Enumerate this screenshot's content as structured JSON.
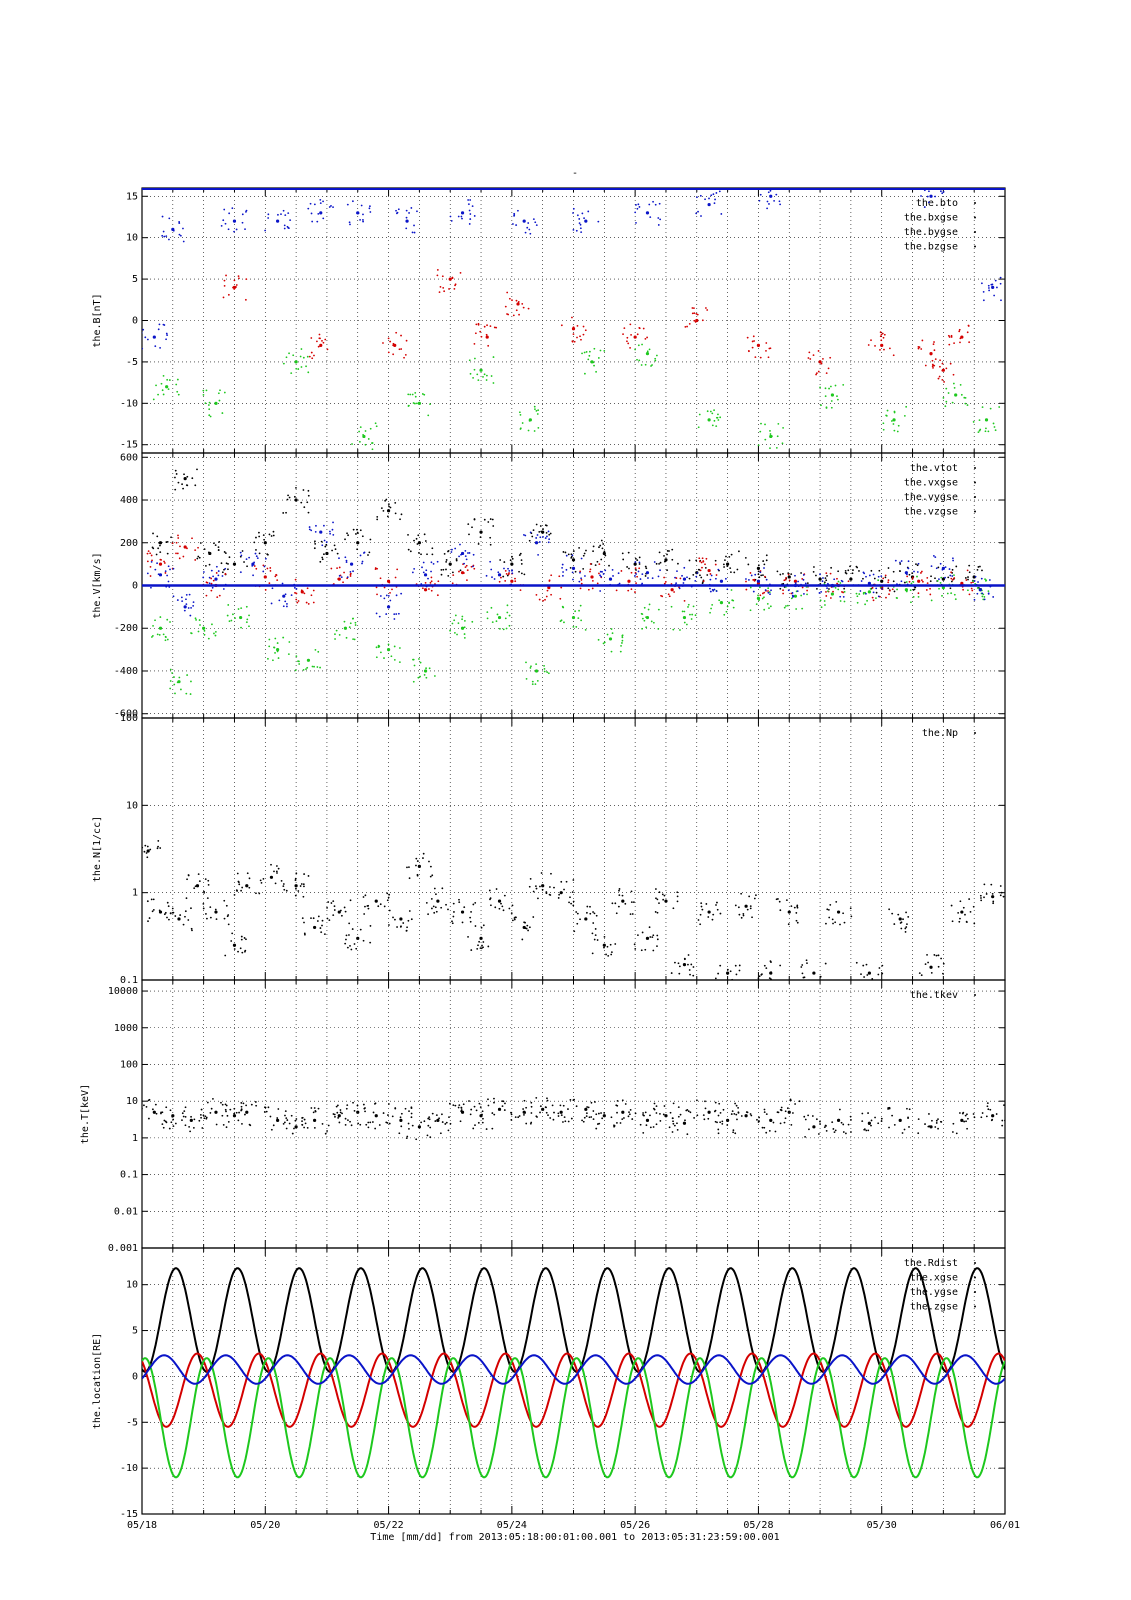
{
  "title": "-",
  "xaxis": {
    "ticks": [
      "05/18",
      "05/20",
      "05/22",
      "05/24",
      "05/26",
      "05/28",
      "05/30",
      "06/01"
    ],
    "minor_ticks_per_major": 4,
    "label": "Time [mm/dd]  from 2013:05:18:00:01:00.001  to  2013:05:31:23:59:00.001",
    "range_days": [
      0,
      14
    ]
  },
  "colors": {
    "black": "#000000",
    "red": "#d40000",
    "green": "#1ec81e",
    "blue": "#0a14c8"
  },
  "chart_data": [
    {
      "type": "scatter",
      "ylabel": "the.B[nT]",
      "scale": "linear",
      "ylim": [
        -16,
        16
      ],
      "yticks": [
        15,
        10,
        5,
        0,
        -5,
        -10,
        -15
      ],
      "ytick_labels": [
        "15",
        "10",
        "5",
        "0",
        "-5",
        "-10",
        "-15"
      ],
      "legend": [
        "the.bto",
        "the.bxgse",
        "the.bygse",
        "the.bzgse"
      ],
      "legend_position": "top-right",
      "grid": true,
      "series": [
        {
          "name": "the.bto",
          "color": "black",
          "x": [],
          "y": []
        },
        {
          "name": "the.bxgse",
          "color": "red",
          "x": [
            1.5,
            2.9,
            4.1,
            5.0,
            5.6,
            6.1,
            7.0,
            8.0,
            9.0,
            10.0,
            11.0,
            12.0,
            12.8,
            13.0,
            13.3
          ],
          "y": [
            4,
            -3,
            -3,
            5,
            -2,
            2,
            -1,
            -2,
            0,
            -3,
            -5,
            -3,
            -4,
            -6,
            -2
          ]
        },
        {
          "name": "the.bygse",
          "color": "green",
          "x": [
            0.4,
            1.2,
            2.5,
            3.6,
            4.5,
            5.5,
            6.3,
            7.3,
            8.2,
            9.2,
            10.2,
            11.2,
            12.2,
            13.2,
            13.7
          ],
          "y": [
            -8,
            -10,
            -5,
            -14,
            -10,
            -6,
            -12,
            -5,
            -4,
            -12,
            -14,
            -9,
            -12,
            -9,
            -12
          ]
        },
        {
          "name": "the.bzgse",
          "color": "blue",
          "x": [
            0.2,
            0.5,
            1.5,
            2.2,
            2.9,
            3.5,
            4.3,
            5.2,
            6.2,
            7.2,
            8.2,
            9.2,
            10.2,
            12.8,
            13.8
          ],
          "y": [
            -2,
            11,
            12,
            12,
            13,
            13,
            12,
            13,
            12,
            12,
            13,
            14,
            15,
            15,
            4
          ]
        }
      ]
    },
    {
      "type": "scatter",
      "ylabel": "the.V[km/s]",
      "scale": "linear",
      "ylim": [
        -620,
        620
      ],
      "yticks": [
        600,
        400,
        200,
        0,
        -200,
        -400,
        -600
      ],
      "ytick_labels": [
        "600",
        "400",
        "200",
        "0",
        "-200",
        "-400",
        "-600"
      ],
      "legend": [
        "the.vtot",
        "the.vxgse",
        "the.vygse",
        "the.vzgse"
      ],
      "legend_position": "top-right",
      "grid": true,
      "series": [
        {
          "name": "the.vtot",
          "color": "black",
          "x": [
            0.3,
            0.7,
            1.1,
            1.5,
            2.0,
            2.5,
            3.0,
            3.5,
            4.0,
            4.5,
            5.0,
            5.5,
            6.0,
            6.5,
            7.0,
            7.5,
            8.0,
            8.5,
            9.0,
            9.5,
            10.0,
            10.5,
            11.0,
            11.5,
            12.0,
            12.5,
            13.0,
            13.5
          ],
          "y": [
            200,
            500,
            150,
            100,
            200,
            400,
            150,
            200,
            350,
            200,
            100,
            250,
            100,
            250,
            120,
            150,
            100,
            120,
            60,
            100,
            80,
            40,
            30,
            30,
            20,
            40,
            30,
            40
          ]
        },
        {
          "name": "the.vxgse",
          "color": "red",
          "x": [
            0.3,
            0.7,
            1.2,
            2.0,
            2.6,
            3.2,
            4.0,
            4.6,
            5.2,
            6.0,
            6.6,
            7.3,
            7.9,
            8.6,
            9.2,
            10.0,
            10.6,
            11.3,
            12.0,
            12.6,
            13.3
          ],
          "y": [
            100,
            180,
            0,
            40,
            -30,
            30,
            20,
            -20,
            60,
            20,
            -10,
            40,
            20,
            -20,
            70,
            10,
            20,
            0,
            -10,
            20,
            10
          ]
        },
        {
          "name": "the.vygse",
          "color": "green",
          "x": [
            0.3,
            0.6,
            1.0,
            1.6,
            2.2,
            2.7,
            3.3,
            4.0,
            4.6,
            5.2,
            5.8,
            6.4,
            7.0,
            7.6,
            8.2,
            8.8,
            9.4,
            10.0,
            10.6,
            11.2,
            11.8,
            12.4,
            13.0,
            13.6
          ],
          "y": [
            -200,
            -450,
            -200,
            -150,
            -300,
            -350,
            -200,
            -300,
            -400,
            -200,
            -150,
            -400,
            -150,
            -250,
            -150,
            -150,
            -80,
            -60,
            -50,
            -40,
            -30,
            -20,
            -10,
            -20
          ]
        },
        {
          "name": "the.vzgse",
          "color": "blue",
          "x": [
            0.3,
            0.7,
            1.2,
            1.8,
            2.3,
            2.9,
            3.4,
            4.0,
            4.6,
            5.2,
            5.8,
            6.4,
            7.0,
            7.6,
            8.2,
            8.8,
            9.4,
            10.0,
            10.6,
            11.2,
            11.8,
            12.4,
            13.0,
            13.6
          ],
          "y": [
            50,
            -100,
            30,
            100,
            -50,
            250,
            100,
            -100,
            50,
            150,
            50,
            200,
            80,
            30,
            60,
            30,
            20,
            20,
            0,
            0,
            10,
            60,
            80,
            -20
          ]
        }
      ]
    },
    {
      "type": "scatter",
      "ylabel": "the.N[1/cc]",
      "scale": "log",
      "ylim": [
        0.1,
        100
      ],
      "yticks": [
        100,
        10,
        1,
        0.1
      ],
      "ytick_labels": [
        "100",
        "10",
        "1",
        "0.1"
      ],
      "legend": [
        "the.Np"
      ],
      "legend_position": "top-right",
      "grid": true,
      "series": [
        {
          "name": "the.Np",
          "color": "black",
          "x": [
            0.1,
            0.3,
            0.6,
            0.9,
            1.2,
            1.5,
            1.7,
            2.1,
            2.5,
            2.8,
            3.2,
            3.5,
            3.8,
            4.2,
            4.5,
            4.8,
            5.2,
            5.5,
            5.8,
            6.2,
            6.5,
            6.8,
            7.2,
            7.5,
            7.8,
            8.2,
            8.5,
            8.8,
            9.2,
            9.5,
            9.8,
            10.2,
            10.5,
            10.9,
            11.3,
            11.8,
            12.3,
            12.8,
            13.3,
            13.8
          ],
          "y": [
            3.0,
            0.6,
            0.5,
            1.2,
            0.6,
            0.25,
            1.2,
            1.5,
            1.2,
            0.4,
            0.6,
            0.3,
            0.8,
            0.5,
            2.0,
            0.8,
            0.6,
            0.3,
            0.8,
            0.4,
            1.2,
            1.0,
            0.5,
            0.25,
            0.8,
            0.3,
            0.8,
            0.15,
            0.6,
            0.12,
            0.7,
            0.12,
            0.6,
            0.12,
            0.6,
            0.12,
            0.5,
            0.14,
            0.6,
            0.9
          ]
        }
      ]
    },
    {
      "type": "scatter",
      "ylabel": "the.T[keV]",
      "scale": "log",
      "ylim": [
        0.001,
        20000
      ],
      "yticks": [
        10000,
        1000,
        100,
        10,
        1,
        0.1,
        0.01,
        0.001
      ],
      "ytick_labels": [
        "10000",
        "1000",
        "100",
        "10",
        "1",
        "0.1",
        "0.01",
        "0.001"
      ],
      "legend": [
        "the.tkev"
      ],
      "legend_position": "top-right",
      "grid": true,
      "series": [
        {
          "name": "the.tkev",
          "color": "black",
          "x": [
            0.2,
            0.5,
            0.8,
            1.2,
            1.5,
            1.7,
            2.2,
            2.5,
            2.8,
            3.2,
            3.5,
            3.8,
            4.2,
            4.5,
            4.8,
            5.2,
            5.5,
            5.8,
            6.2,
            6.5,
            6.8,
            7.2,
            7.5,
            7.8,
            8.2,
            8.5,
            8.8,
            9.2,
            9.5,
            9.8,
            10.2,
            10.5,
            10.9,
            11.3,
            11.8,
            12.3,
            12.8,
            13.3,
            13.8
          ],
          "y": [
            5,
            4,
            3,
            5,
            4,
            5,
            3,
            2,
            3,
            4,
            5,
            4,
            3,
            2,
            3,
            5,
            4,
            6,
            5,
            6,
            5,
            6,
            4,
            5,
            3,
            4,
            2.5,
            5,
            3,
            4,
            3,
            5,
            2,
            3,
            2.5,
            3,
            2,
            3,
            4
          ]
        }
      ]
    },
    {
      "type": "line",
      "ylabel": "the.location[RE]",
      "scale": "linear",
      "ylim": [
        -15,
        14
      ],
      "yticks": [
        10,
        5,
        0,
        -5,
        -10,
        -15
      ],
      "ytick_labels": [
        "10",
        "5",
        "0",
        "-5",
        "-10",
        "-15"
      ],
      "legend": [
        "the.Rdist",
        "the.xgse",
        "the.ygse",
        "the.zgse"
      ],
      "legend_position": "top-right",
      "grid": true,
      "orbit_period_days": 1.0,
      "orbit_phase_days": 0.55,
      "series": [
        {
          "name": "the.Rdist",
          "color": "black",
          "min": 0.5,
          "max": 11.8
        },
        {
          "name": "the.xgse",
          "color": "red",
          "min": -5.5,
          "max": 2.5
        },
        {
          "name": "the.ygse",
          "color": "green",
          "min": -11.0,
          "max": 2.0
        },
        {
          "name": "the.zgse",
          "color": "blue",
          "min": -0.8,
          "max": 2.3
        }
      ]
    }
  ]
}
